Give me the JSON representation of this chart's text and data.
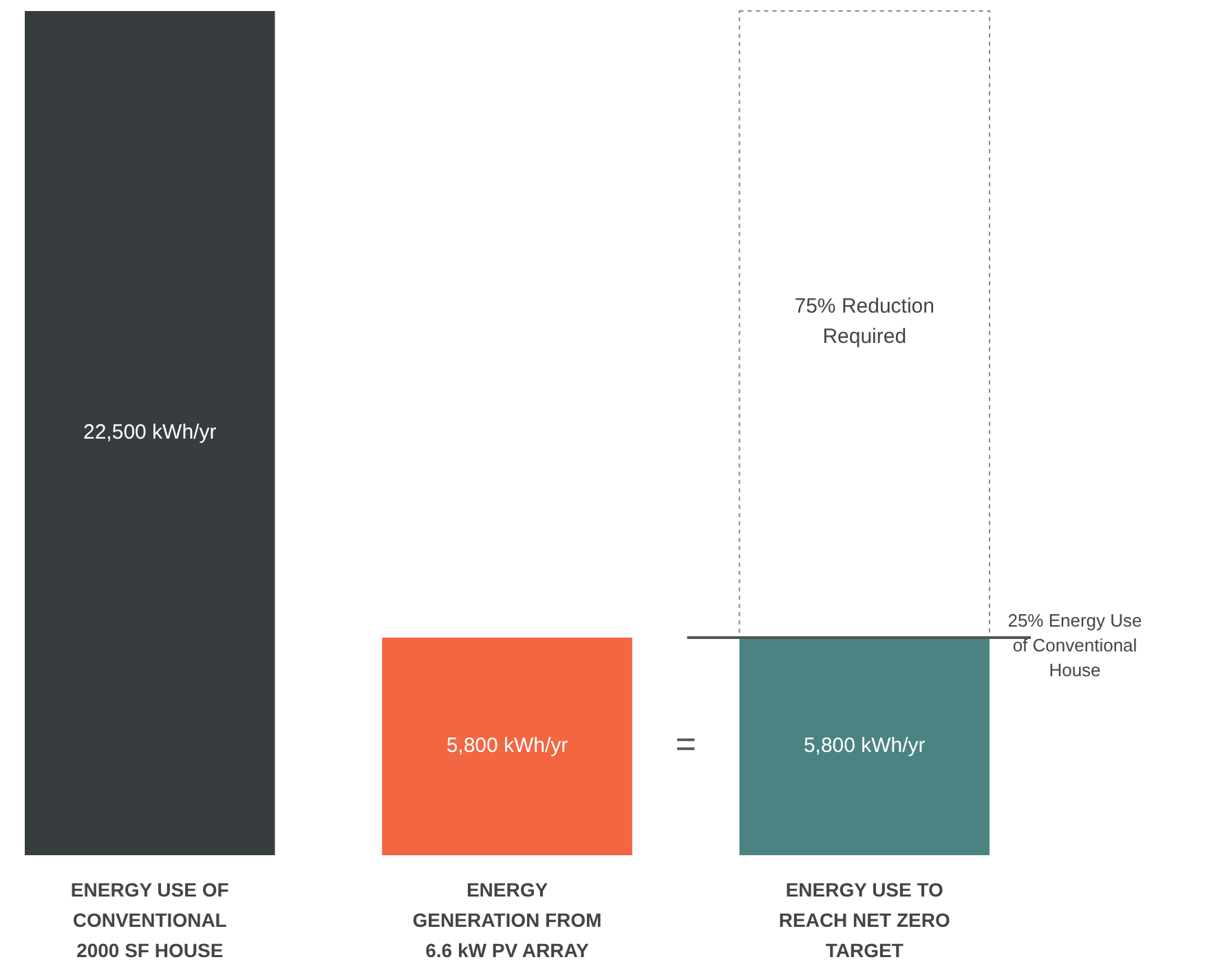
{
  "chart_data": {
    "type": "bar",
    "stacked": true,
    "categories": [
      "ENERGY USE OF CONVENTIONAL 2000 SF HOUSE",
      "ENERGY GENERATION FROM 6.6 kW PV ARRAY (OBSERVED)",
      "ENERGY USE TO REACH NET ZERO TARGET"
    ],
    "series": [
      {
        "colors": [
          "#373d3f",
          "#f26641",
          "#4a8381"
        ],
        "values": [
          22500,
          5800,
          5800
        ],
        "value_labels": [
          "22,500 kWh/yr",
          "5,800 kWh/yr",
          "5,800 kWh/yr"
        ]
      },
      {
        "color": "#ffffff",
        "line_style": "dashed",
        "values": [
          null,
          null,
          16700
        ]
      }
    ],
    "ref_lines": [
      {
        "axis": "y",
        "value": 5800,
        "label": "25% Energy Use of Conventional House",
        "color": "#555555"
      }
    ],
    "annotations": [
      "75% Reduction Required",
      "="
    ]
  }
}
